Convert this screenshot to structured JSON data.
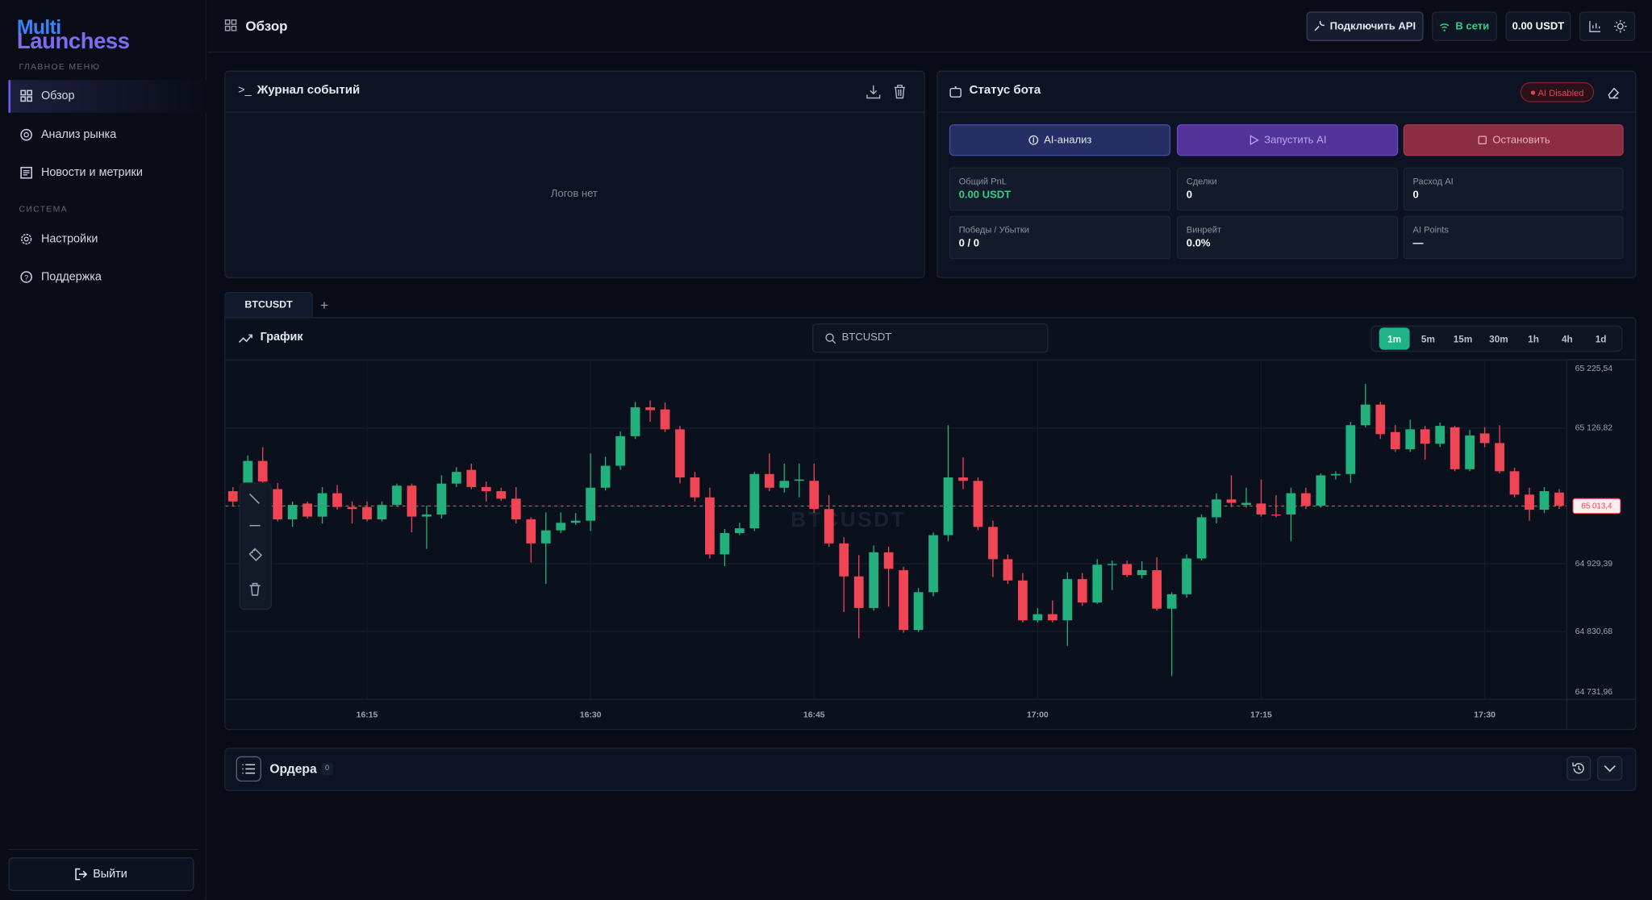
{
  "sidebar": {
    "logo_top": "Multi",
    "logo_bottom": "Launchess",
    "section_main": "ГЛАВНОЕ МЕНЮ",
    "main_items": [
      "Обзор",
      "Анализ рынка",
      "Новости и метрики"
    ],
    "section_system": "СИСТЕМА",
    "system_items": [
      "Настройки",
      "Поддержка"
    ],
    "logout": "Выйти"
  },
  "header": {
    "title": "Обзор",
    "connect_api": "Подключить API",
    "status": "В сети",
    "balance": "0.00 USDT"
  },
  "log_panel": {
    "title": "Журнал событий",
    "empty": "Логов нет"
  },
  "bot_panel": {
    "title": "Статус бота",
    "badge": "AI Disabled",
    "actions": [
      "AI-анализ",
      "Запустить AI",
      "Остановить"
    ],
    "stats": [
      {
        "label": "Общий PnL",
        "value": "0.00 USDT"
      },
      {
        "label": "Сделки",
        "value": "0"
      },
      {
        "label": "Расход AI",
        "value": "0"
      },
      {
        "label": "Победы / Убытки",
        "value": "0 / 0"
      },
      {
        "label": "Винрейт",
        "value": "0.0%"
      },
      {
        "label": "AI Points",
        "value": "—"
      }
    ]
  },
  "tabs": [
    "BTCUSDT"
  ],
  "tab_add": "+",
  "chart_panel": {
    "title": "График",
    "search": "BTCUSDT",
    "timeframes": [
      "1m",
      "5m",
      "15m",
      "30m",
      "1h",
      "4h",
      "1d"
    ],
    "active_timeframe": 0
  },
  "chart_data": {
    "type": "candlestick",
    "watermark": "BTCUSDT",
    "up_color": "#22b07d",
    "down_color": "#ef4554",
    "grid": true,
    "categories": [
      null,
      null,
      null,
      null,
      null,
      null,
      null,
      null,
      null,
      "16:15",
      null,
      null,
      null,
      null,
      null,
      null,
      null,
      null,
      null,
      null,
      null,
      null,
      null,
      null,
      "16:30",
      null,
      null,
      null,
      null,
      null,
      null,
      null,
      null,
      null,
      null,
      null,
      null,
      null,
      null,
      "16:45",
      null,
      null,
      null,
      null,
      null,
      null,
      null,
      null,
      null,
      null,
      null,
      null,
      null,
      null,
      "17:00",
      null,
      null,
      null,
      null,
      null,
      null,
      null,
      null,
      null,
      null,
      null,
      null,
      null,
      null,
      "17:15",
      null,
      null,
      null,
      null,
      null,
      null,
      null,
      null,
      null,
      null,
      null,
      null,
      null,
      null,
      "17:30",
      null,
      null,
      null,
      null,
      null
    ],
    "open": [
      65035,
      65047,
      65079,
      65038,
      64994,
      65017,
      64998,
      65032,
      65012,
      65012,
      64994,
      65015,
      65043,
      64998,
      65001,
      65046,
      65066,
      65041,
      65035,
      65024,
      64994,
      64959,
      64978,
      64989,
      64992,
      65040,
      65072,
      65115,
      65157,
      65154,
      65125,
      65055,
      65026,
      64943,
      64974,
      64981,
      65060,
      65040,
      65050,
      65050,
      65009,
      64959,
      64911,
      64865,
      64946,
      64920,
      64833,
      64888,
      64971,
      65055,
      65050,
      64983,
      64936,
      64905,
      64847,
      64856,
      64847,
      64907,
      64873,
      64928,
      64929,
      64913,
      64920,
      64864,
      64885,
      64937,
      64997,
      65023,
      65015,
      65017,
      65001,
      65001,
      65032,
      65014,
      65058,
      65060,
      65131,
      65161,
      65121,
      65096,
      65125,
      65104,
      65128,
      65067,
      65119,
      65105,
      65064,
      65030,
      65008,
      65033
    ],
    "high": [
      65041,
      65087,
      65099,
      65047,
      65020,
      65020,
      65041,
      65044,
      65020,
      65020,
      65020,
      65046,
      65046,
      65014,
      65058,
      65070,
      65075,
      65049,
      65040,
      65041,
      64997,
      65004,
      65004,
      65003,
      65090,
      65085,
      65122,
      65165,
      65167,
      65164,
      65130,
      65063,
      65040,
      64980,
      64989,
      65063,
      65090,
      65075,
      65075,
      65075,
      65029,
      64968,
      64942,
      64956,
      64954,
      64925,
      64894,
      64975,
      65131,
      65084,
      65055,
      64992,
      64943,
      64916,
      64865,
      64876,
      64917,
      64916,
      64936,
      64934,
      64934,
      64933,
      64939,
      64888,
      64943,
      65001,
      65032,
      65058,
      65040,
      65052,
      65029,
      65040,
      65040,
      65061,
      65064,
      65136,
      65191,
      65165,
      65131,
      65139,
      65130,
      65135,
      65130,
      65124,
      65128,
      65131,
      65069,
      65040,
      65041,
      65038
    ],
    "low": [
      65014,
      65044,
      65035,
      64991,
      64983,
      64995,
      64988,
      65008,
      64988,
      64991,
      64991,
      65012,
      64975,
      64951,
      64995,
      65041,
      65038,
      65020,
      65021,
      64988,
      64931,
      64900,
      64974,
      64986,
      64977,
      65036,
      65066,
      65111,
      65136,
      65121,
      65046,
      65020,
      64937,
      64926,
      64971,
      64977,
      65035,
      65033,
      65026,
      65003,
      64954,
      64859,
      64821,
      64861,
      64867,
      64829,
      64830,
      64882,
      64962,
      65038,
      64978,
      64910,
      64900,
      64844,
      64844,
      64844,
      64810,
      64868,
      64871,
      64891,
      64910,
      64908,
      64861,
      64766,
      64880,
      64934,
      64988,
      65012,
      65011,
      64998,
      64997,
      64962,
      65009,
      65011,
      65052,
      65047,
      65128,
      65111,
      65092,
      65092,
      65081,
      65099,
      65064,
      65064,
      65099,
      65061,
      65026,
      64992,
      65003,
      65009
    ],
    "close": [
      65020,
      65079,
      65049,
      64994,
      65015,
      64998,
      65032,
      65012,
      65009,
      64994,
      65015,
      65043,
      64998,
      65001,
      65046,
      65063,
      65041,
      65035,
      65024,
      64994,
      64959,
      64978,
      64989,
      64992,
      65040,
      65072,
      65115,
      65157,
      65153,
      65125,
      65055,
      65026,
      64943,
      64974,
      64981,
      65060,
      65040,
      65050,
      65052,
      65009,
      64959,
      64911,
      64865,
      64946,
      64922,
      64833,
      64888,
      64971,
      65055,
      65050,
      64983,
      64936,
      64905,
      64847,
      64856,
      64847,
      64907,
      64873,
      64928,
      64929,
      64913,
      64920,
      64864,
      64885,
      64937,
      64997,
      65023,
      65018,
      65018,
      65001,
      65000,
      65032,
      65014,
      65058,
      65060,
      65131,
      65161,
      65118,
      65096,
      65125,
      65104,
      65130,
      65067,
      65116,
      65105,
      65064,
      65030,
      65008,
      65035,
      65014
    ],
    "ylim": [
      64731.96,
      65225.54
    ],
    "yticks": [
      {
        "value": 65225.54,
        "label": "65 225,54"
      },
      {
        "value": 65126.82,
        "label": "65 126,82"
      },
      {
        "value": 64929.39,
        "label": "64 929,39"
      },
      {
        "value": 64830.68,
        "label": "64 830,68"
      },
      {
        "value": 64731.96,
        "label": "64 731,96"
      }
    ],
    "last_price": {
      "value": 65013.4,
      "label": "65 013,4"
    }
  },
  "orders": {
    "title": "Ордера",
    "count": 0
  }
}
